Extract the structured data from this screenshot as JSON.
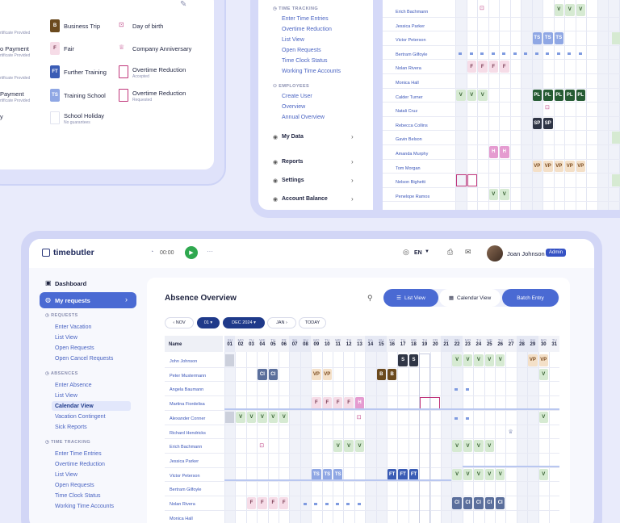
{
  "legend": {
    "items": [
      {
        "label": "Business Trip",
        "chip": "B",
        "color": "#6b4a1e"
      },
      {
        "label": "Day of birth",
        "icon": "cake-icon"
      },
      {
        "label": "Fair",
        "chip": "F",
        "color": "#f6dce7"
      },
      {
        "label": "Company Anniversary",
        "icon": "trophy-icon"
      },
      {
        "label": "Further Training",
        "chip": "FT",
        "color": "#3a5cb5"
      },
      {
        "label": "Overtime Reduction",
        "sub": "Accepted"
      },
      {
        "label": "Training School",
        "chip": "TS",
        "color": "#8fa7e4"
      },
      {
        "label": "Overtime Reduction",
        "sub": "Requested"
      },
      {
        "label": "School Holiday",
        "sub": "No guarantees"
      }
    ],
    "left_partial": [
      {
        "label": "",
        "sub": "rtificate Provided"
      },
      {
        "label": "o Payment",
        "sub": "rtificate Provided"
      },
      {
        "label": "",
        "sub": "rtificate Provided"
      },
      {
        "label": "Payment",
        "sub": "rtificate Provided"
      },
      {
        "label": "y",
        "sub": ""
      }
    ]
  },
  "nav_menu": {
    "time_tracking": {
      "title": "TIME TRACKING",
      "links": [
        "Enter Time Entries",
        "Overtime Reduction",
        "List View",
        "Open Requests",
        "Time Clock Status",
        "Working Time Accounts"
      ]
    },
    "employees": {
      "title": "EMPLOYEES",
      "links": [
        "Create User",
        "Overview",
        "Annual Overview"
      ]
    },
    "groups": [
      "My Data",
      "Reports",
      "Settings",
      "Account Balance"
    ]
  },
  "top_right_rows": [
    {
      "name": "Erich Bachmann"
    },
    {
      "name": "Jessica Parker"
    },
    {
      "name": "Victor Peterson"
    },
    {
      "name": "Bertram Gilfoyle"
    },
    {
      "name": "Nolan Rivera"
    },
    {
      "name": "Monica Hall"
    },
    {
      "name": "Calder Turner"
    },
    {
      "name": "Natali Cruz"
    },
    {
      "name": "Rebecca Collins"
    },
    {
      "name": "Gavin Belson"
    },
    {
      "name": "Amanda Murphy"
    },
    {
      "name": "Tom Morgan"
    },
    {
      "name": "Nelson Bighetti"
    },
    {
      "name": "Penelope Ramos"
    }
  ],
  "app": {
    "logo": "timebutler",
    "timer": "00:00",
    "language": "EN",
    "user": {
      "name": "Joan Johnson",
      "badge": "Admin"
    },
    "sidebar": {
      "dashboard": "Dashboard",
      "my_requests": "My requests",
      "requests": {
        "title": "REQUESTS",
        "links": [
          "Enter Vacation",
          "List View",
          "Open Requests",
          "Open Cancel Requests"
        ]
      },
      "absences": {
        "title": "ABSENCES",
        "links": [
          "Enter Absence",
          "List View",
          "Calendar View",
          "Vacation Contingent",
          "Sick Reports"
        ]
      },
      "time_tracking": {
        "title": "TIME TRACKING",
        "links": [
          "Enter Time Entries",
          "Overtime Reduction",
          "List View",
          "Open Requests",
          "Time Clock Status",
          "Working Time Accounts"
        ]
      }
    },
    "main": {
      "title": "Absence Overview",
      "views": {
        "list": "List View",
        "calendar": "Calendar View",
        "batch": "Batch Entry"
      },
      "controls": {
        "prev": "NOV",
        "day": "01",
        "month": "DEC 2024",
        "next": "JAN",
        "today": "TODAY"
      },
      "name_header": "Name",
      "days": [
        {
          "d": "SU",
          "n": "01"
        },
        {
          "d": "MO",
          "n": "02"
        },
        {
          "d": "TU",
          "n": "03"
        },
        {
          "d": "WE",
          "n": "04"
        },
        {
          "d": "TH",
          "n": "05"
        },
        {
          "d": "FR",
          "n": "06"
        },
        {
          "d": "SA",
          "n": "07"
        },
        {
          "d": "SU",
          "n": "08"
        },
        {
          "d": "MO",
          "n": "09"
        },
        {
          "d": "TU",
          "n": "10"
        },
        {
          "d": "WE",
          "n": "11"
        },
        {
          "d": "TH",
          "n": "12"
        },
        {
          "d": "FR",
          "n": "13"
        },
        {
          "d": "SA",
          "n": "14"
        },
        {
          "d": "SU",
          "n": "15"
        },
        {
          "d": "MO",
          "n": "16"
        },
        {
          "d": "TU",
          "n": "17"
        },
        {
          "d": "WE",
          "n": "18"
        },
        {
          "d": "TH",
          "n": "19"
        },
        {
          "d": "FR",
          "n": "20"
        },
        {
          "d": "SA",
          "n": "21"
        },
        {
          "d": "SU",
          "n": "22"
        },
        {
          "d": "MO",
          "n": "23"
        },
        {
          "d": "TU",
          "n": "24"
        },
        {
          "d": "WE",
          "n": "25"
        },
        {
          "d": "TH",
          "n": "26"
        },
        {
          "d": "FR",
          "n": "27"
        },
        {
          "d": "SA",
          "n": "28"
        },
        {
          "d": "SU",
          "n": "29"
        },
        {
          "d": "MO",
          "n": "30"
        },
        {
          "d": "TU",
          "n": "31"
        }
      ],
      "rows": [
        "John Johnson",
        "Peter Mustermann",
        "Angela Baumann",
        "Martina Fiordelisa",
        "Alexander Conner",
        "Richard Hendricks",
        "Erich Bachmann",
        "Jessica Parker",
        "Victor Peterson",
        "Bertram Gilfoyle",
        "Nolan Rivera",
        "Monica Hall"
      ]
    }
  },
  "colors": {
    "vacation": "#d6ead2",
    "vacation_text": "#2f5a2a",
    "ci": "#5b6f9c",
    "parental": "#265c34",
    "vp": "#f4e0c8",
    "sp": "#2f3545",
    "fair": "#f6dce7",
    "hold": "#e59bd0",
    "ts": "#8fa7e4",
    "ft": "#3a5cb5",
    "accent": "#4a6ad3"
  }
}
